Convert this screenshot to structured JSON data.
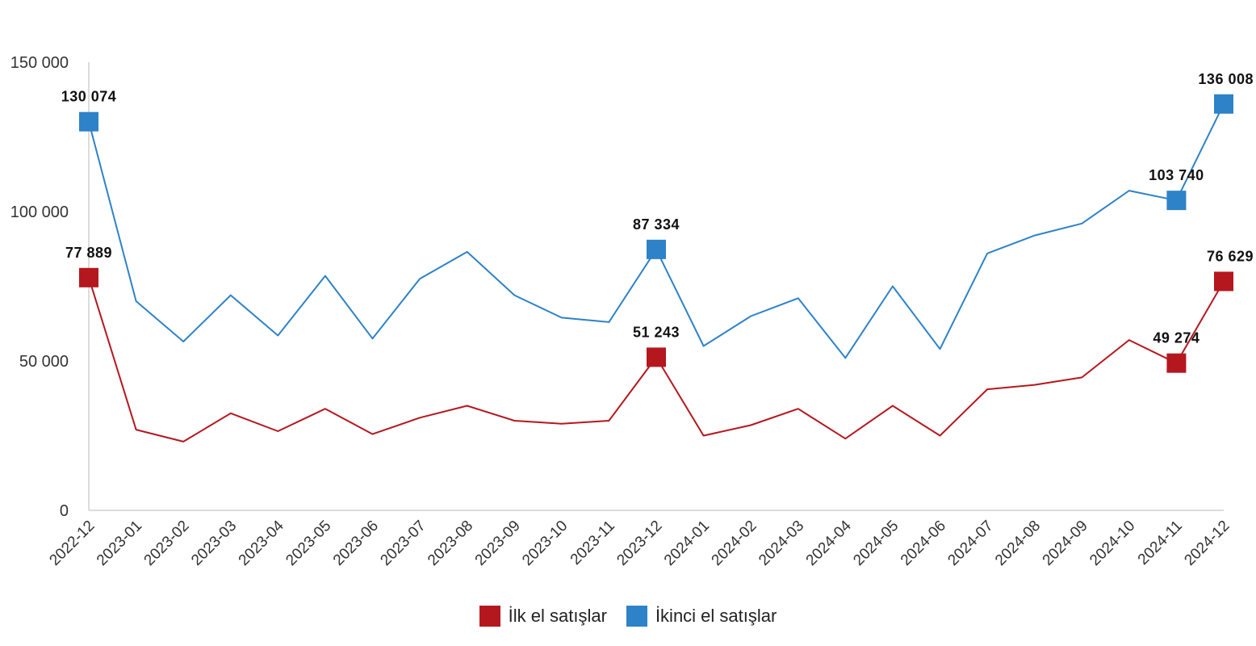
{
  "chart_data": {
    "type": "line",
    "categories": [
      "2022-12",
      "2023-01",
      "2023-02",
      "2023-03",
      "2023-04",
      "2023-05",
      "2023-06",
      "2023-07",
      "2023-08",
      "2023-09",
      "2023-10",
      "2023-11",
      "2023-12",
      "2024-01",
      "2024-02",
      "2024-03",
      "2024-04",
      "2024-05",
      "2024-06",
      "2024-07",
      "2024-08",
      "2024-09",
      "2024-10",
      "2024-11",
      "2024-12"
    ],
    "ylim": [
      0,
      150000
    ],
    "yticks": [
      0,
      50000,
      100000,
      150000
    ],
    "ytick_labels": [
      "0",
      "50 000",
      "100 000",
      "150 000"
    ],
    "grid": false,
    "legend_position": "bottom-center",
    "series": [
      {
        "name": "İlk el satışlar",
        "color": "#b5171e",
        "values": [
          77889,
          27000,
          23000,
          32500,
          26500,
          34000,
          25500,
          31000,
          35000,
          30000,
          29000,
          30000,
          51243,
          25000,
          28500,
          34000,
          24000,
          35000,
          25000,
          40500,
          42000,
          44500,
          57000,
          49274,
          76629
        ],
        "labeled_points": [
          {
            "index": 0,
            "label": "77 889"
          },
          {
            "index": 12,
            "label": "51 243"
          },
          {
            "index": 23,
            "label": "49 274"
          },
          {
            "index": 24,
            "label": "76 629"
          }
        ]
      },
      {
        "name": "İkinci el satışlar",
        "color": "#2e82c8",
        "values": [
          130074,
          70000,
          56500,
          72000,
          58500,
          78500,
          57500,
          77500,
          86500,
          72000,
          64500,
          63000,
          87334,
          55000,
          65000,
          71000,
          51000,
          75000,
          54000,
          86000,
          92000,
          96000,
          107000,
          103740,
          136008
        ],
        "labeled_points": [
          {
            "index": 0,
            "label": "130 074"
          },
          {
            "index": 12,
            "label": "87 334"
          },
          {
            "index": 23,
            "label": "103 740"
          },
          {
            "index": 24,
            "label": "136 008"
          }
        ]
      }
    ]
  }
}
